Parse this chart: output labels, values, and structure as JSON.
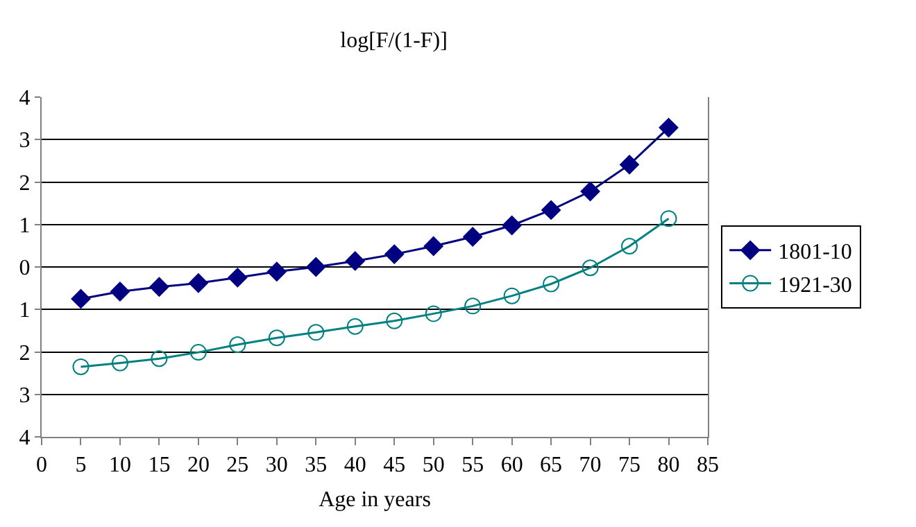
{
  "chart_data": {
    "type": "line",
    "title": "log[F/(1-F)]",
    "xlabel": "Age in years",
    "x": [
      5,
      10,
      15,
      20,
      25,
      30,
      35,
      40,
      45,
      50,
      55,
      60,
      65,
      70,
      75,
      80
    ],
    "series": [
      {
        "name": "1801-10",
        "color": "#000080",
        "marker": "diamond",
        "values": [
          -0.75,
          -0.58,
          -0.47,
          -0.38,
          -0.25,
          -0.11,
          0,
          0.14,
          0.3,
          0.49,
          0.71,
          0.98,
          1.34,
          1.78,
          2.41,
          3.28
        ]
      },
      {
        "name": "1921-30",
        "color": "#008080",
        "marker": "circle",
        "values": [
          -2.35,
          -2.26,
          -2.16,
          -2.01,
          -1.83,
          -1.67,
          -1.54,
          -1.4,
          -1.27,
          -1.1,
          -0.92,
          -0.68,
          -0.4,
          -0.02,
          0.49,
          1.14
        ]
      }
    ],
    "xlim": [
      0,
      85
    ],
    "xticks": [
      0,
      5,
      10,
      15,
      20,
      25,
      30,
      35,
      40,
      45,
      50,
      55,
      60,
      65,
      70,
      75,
      80,
      85
    ],
    "ylim": [
      -4,
      4
    ],
    "yticks": [
      {
        "value": -4,
        "label": "4"
      },
      {
        "value": -3,
        "label": "3"
      },
      {
        "value": -2,
        "label": "2"
      },
      {
        "value": -1,
        "label": "1"
      },
      0,
      1,
      2,
      3,
      4
    ],
    "grid": "y",
    "legend": "right"
  }
}
